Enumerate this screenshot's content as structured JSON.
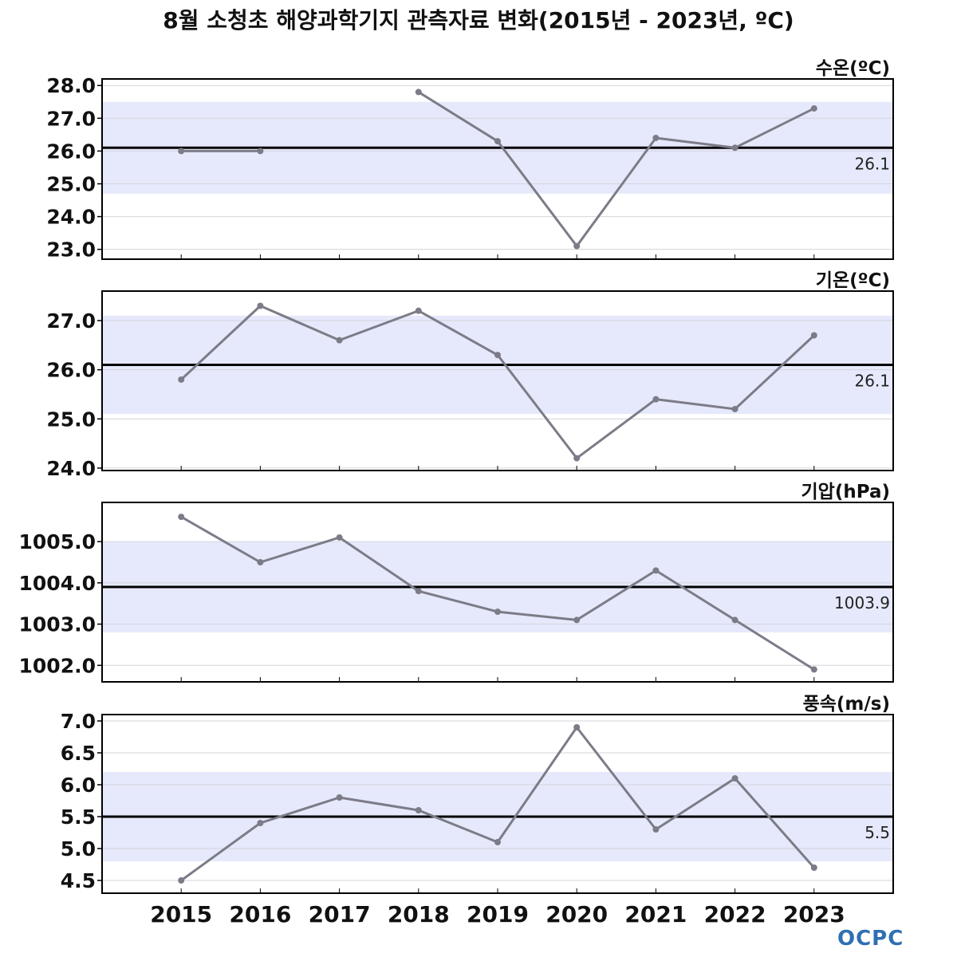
{
  "title": "8월 소청초 해양과학기지 관측자료 변화(2015년 - 2023년, ºC)",
  "logo": "OCPC",
  "colors": {
    "series": "#7c7c88",
    "band": "#e6e9fb",
    "mean_line": "#000000",
    "grid": "#d4d4dc",
    "axis": "#000000"
  },
  "chart_data": [
    {
      "type": "line",
      "label": "수온(ºC)",
      "x": [
        2015,
        2016,
        2017,
        2018,
        2019,
        2020,
        2021,
        2022,
        2023
      ],
      "values": [
        26.0,
        26.0,
        null,
        27.8,
        26.3,
        23.1,
        26.4,
        26.1,
        27.3
      ],
      "mean": 26.1,
      "mean_label": "26.1",
      "band": [
        24.7,
        27.5
      ],
      "ylim": [
        22.7,
        28.2
      ],
      "yticks": [
        23.0,
        24.0,
        25.0,
        26.0,
        27.0,
        28.0
      ],
      "ytick_labels": [
        "23.0",
        "24.0",
        "25.0",
        "26.0",
        "27.0",
        "28.0"
      ],
      "grid": true
    },
    {
      "type": "line",
      "label": "기온(ºC)",
      "x": [
        2015,
        2016,
        2017,
        2018,
        2019,
        2020,
        2021,
        2022,
        2023
      ],
      "values": [
        25.8,
        27.3,
        26.6,
        27.2,
        26.3,
        24.2,
        25.4,
        25.2,
        26.7
      ],
      "mean": 26.1,
      "mean_label": "26.1",
      "band": [
        25.1,
        27.1
      ],
      "ylim": [
        23.95,
        27.6
      ],
      "yticks": [
        24.0,
        25.0,
        26.0,
        27.0
      ],
      "ytick_labels": [
        "24.0",
        "25.0",
        "26.0",
        "27.0"
      ],
      "grid": true
    },
    {
      "type": "line",
      "label": "기압(hPa)",
      "x": [
        2015,
        2016,
        2017,
        2018,
        2019,
        2020,
        2021,
        2022,
        2023
      ],
      "values": [
        1005.6,
        1004.5,
        1005.1,
        1003.8,
        1003.3,
        1003.1,
        1004.3,
        1003.1,
        1001.9
      ],
      "mean": 1003.9,
      "mean_label": "1003.9",
      "band": [
        1002.8,
        1005.0
      ],
      "ylim": [
        1001.6,
        1005.95
      ],
      "yticks": [
        1002.0,
        1003.0,
        1004.0,
        1005.0
      ],
      "ytick_labels": [
        "1002.0",
        "1003.0",
        "1004.0",
        "1005.0"
      ],
      "grid": true
    },
    {
      "type": "line",
      "label": "풍속(m/s)",
      "x": [
        2015,
        2016,
        2017,
        2018,
        2019,
        2020,
        2021,
        2022,
        2023
      ],
      "values": [
        4.5,
        5.4,
        5.8,
        5.6,
        5.1,
        6.9,
        5.3,
        6.1,
        4.7
      ],
      "mean": 5.5,
      "mean_label": "5.5",
      "band": [
        4.8,
        6.2
      ],
      "ylim": [
        4.3,
        7.1
      ],
      "yticks": [
        4.5,
        5.0,
        5.5,
        6.0,
        6.5,
        7.0
      ],
      "ytick_labels": [
        "4.5",
        "5.0",
        "5.5",
        "6.0",
        "6.5",
        "7.0"
      ],
      "grid": true
    }
  ],
  "x_ticks": [
    2015,
    2016,
    2017,
    2018,
    2019,
    2020,
    2021,
    2022,
    2023
  ],
  "x_tick_labels": [
    "2015",
    "2016",
    "2017",
    "2018",
    "2019",
    "2020",
    "2021",
    "2022",
    "2023"
  ],
  "xlim": [
    2014,
    2024
  ]
}
